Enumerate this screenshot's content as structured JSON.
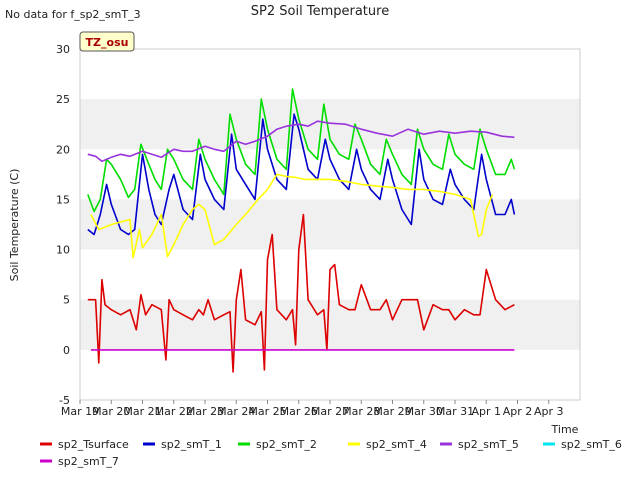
{
  "page": {
    "title": "SP2 Soil Temperature",
    "nodata_note": "No data for f_sp2_smT_3",
    "site_badge": "TZ_osu"
  },
  "chart_data": {
    "type": "line",
    "title": "SP2 Soil Temperature",
    "xlabel": "Time",
    "ylabel": "Soil Temperature (C)",
    "xlim": [
      0,
      16
    ],
    "ylim": [
      -5,
      30
    ],
    "x_ticks": [
      "Mar 19",
      "Mar 20",
      "Mar 21",
      "Mar 22",
      "Mar 23",
      "Mar 24",
      "Mar 25",
      "Mar 26",
      "Mar 27",
      "Mar 28",
      "Mar 29",
      "Mar 30",
      "Mar 31",
      "Apr 1",
      "Apr 2",
      "Apr 3"
    ],
    "y_ticks": [
      -5,
      0,
      5,
      10,
      15,
      20,
      25,
      30
    ],
    "grid": "horizontal bands",
    "legend_position": "bottom",
    "series": [
      {
        "name": "sp2_Tsurface",
        "color": "#dd0000",
        "x": [
          0.25,
          0.5,
          0.6,
          0.7,
          0.8,
          1.0,
          1.3,
          1.6,
          1.8,
          1.95,
          2.1,
          2.3,
          2.6,
          2.75,
          2.85,
          3.0,
          3.3,
          3.6,
          3.8,
          3.95,
          4.1,
          4.3,
          4.6,
          4.8,
          4.9,
          5.0,
          5.15,
          5.3,
          5.6,
          5.8,
          5.9,
          6.0,
          6.15,
          6.3,
          6.6,
          6.8,
          6.9,
          7.0,
          7.15,
          7.3,
          7.6,
          7.8,
          7.9,
          8.0,
          8.15,
          8.3,
          8.6,
          8.8,
          9.0,
          9.3,
          9.6,
          9.8,
          10.0,
          10.3,
          10.6,
          10.8,
          11.0,
          11.3,
          11.6,
          11.8,
          12.0,
          12.3,
          12.6,
          12.8,
          13.0,
          13.3,
          13.6,
          13.9
        ],
        "y": [
          5,
          5,
          -1.3,
          7,
          4.5,
          4,
          3.5,
          4,
          2,
          5.5,
          3.5,
          4.5,
          4,
          -1,
          5,
          4,
          3.5,
          3,
          4,
          3.5,
          5,
          3,
          3.5,
          3.8,
          -2.2,
          5,
          8,
          3,
          2.5,
          3.8,
          -2,
          9,
          11.5,
          4,
          3,
          4,
          0.5,
          10,
          13.5,
          5,
          3.5,
          4,
          0,
          8,
          8.5,
          4.5,
          4,
          4,
          6.5,
          4,
          4,
          5,
          3,
          5,
          5,
          5,
          2,
          4.5,
          4,
          4,
          3,
          4,
          3.5,
          3.5,
          8,
          5,
          4,
          4.5
        ]
      },
      {
        "name": "sp2_smT_1",
        "color": "#0000cc",
        "x": [
          0.25,
          0.45,
          0.65,
          0.85,
          1.0,
          1.3,
          1.55,
          1.75,
          2.0,
          2.2,
          2.4,
          2.6,
          2.85,
          3.0,
          3.3,
          3.6,
          3.85,
          4.0,
          4.3,
          4.6,
          4.85,
          5.0,
          5.3,
          5.6,
          5.85,
          6.0,
          6.3,
          6.6,
          6.85,
          7.0,
          7.3,
          7.6,
          7.85,
          8.0,
          8.3,
          8.6,
          8.85,
          9.0,
          9.3,
          9.6,
          9.85,
          10.0,
          10.3,
          10.6,
          10.85,
          11.0,
          11.3,
          11.6,
          11.85,
          12.0,
          12.3,
          12.6,
          12.85,
          13.0,
          13.3,
          13.6,
          13.8,
          13.9
        ],
        "y": [
          12,
          11.5,
          13.5,
          16.5,
          14.5,
          12,
          11.5,
          12,
          19.5,
          16,
          13.5,
          12.5,
          16,
          17.5,
          14,
          13,
          19.5,
          17,
          15,
          14,
          21.5,
          18,
          16.5,
          15,
          23,
          20,
          17,
          16,
          23.5,
          22,
          18,
          17,
          21,
          19,
          17,
          16,
          20,
          18,
          16,
          15,
          19,
          17,
          14,
          12.5,
          20,
          17,
          15,
          14.5,
          18,
          16.5,
          15,
          14,
          19.5,
          17,
          13.5,
          13.5,
          15,
          13.5
        ]
      },
      {
        "name": "sp2_smT_2",
        "color": "#00dd00",
        "x": [
          0.25,
          0.45,
          0.65,
          0.85,
          1.0,
          1.3,
          1.55,
          1.75,
          1.95,
          2.2,
          2.4,
          2.6,
          2.8,
          3.0,
          3.3,
          3.6,
          3.8,
          4.0,
          4.3,
          4.6,
          4.8,
          5.0,
          5.3,
          5.6,
          5.8,
          6.0,
          6.3,
          6.6,
          6.8,
          7.0,
          7.3,
          7.6,
          7.8,
          8.0,
          8.3,
          8.6,
          8.8,
          9.0,
          9.3,
          9.6,
          9.8,
          10.0,
          10.3,
          10.6,
          10.8,
          11.0,
          11.3,
          11.6,
          11.8,
          12.0,
          12.3,
          12.6,
          12.8,
          13.0,
          13.3,
          13.6,
          13.8,
          13.9
        ],
        "y": [
          15.5,
          13.8,
          15,
          19,
          18.5,
          17,
          15.2,
          16,
          20.5,
          18.5,
          17,
          16,
          20,
          19,
          17,
          16,
          21,
          19,
          17,
          15.5,
          23.5,
          21,
          18.5,
          17.5,
          25,
          22,
          19,
          18,
          26,
          23,
          20,
          19,
          24.5,
          21,
          19.5,
          19,
          22.5,
          21,
          18.5,
          17.5,
          21,
          19.5,
          17.5,
          16.5,
          22,
          20,
          18.5,
          18,
          21.5,
          19.5,
          18.5,
          18,
          22,
          20,
          17.5,
          17.5,
          19,
          18
        ]
      },
      {
        "name": "sp2_smT_4",
        "color": "#ffff00",
        "x": [
          0.35,
          0.6,
          1.0,
          1.6,
          1.7,
          1.9,
          2.0,
          2.3,
          2.6,
          2.8,
          3.0,
          3.3,
          3.6,
          3.8,
          4.0,
          4.3,
          4.6,
          5.0,
          5.3,
          5.7,
          6.0,
          6.3,
          6.6,
          6.9,
          7.2,
          7.6,
          8.0,
          8.5,
          9.0,
          9.6,
          10.0,
          10.5,
          11.0,
          11.5,
          12.0,
          12.5,
          12.75,
          12.85,
          13.0,
          13.2
        ],
        "y": [
          13.5,
          12,
          12.5,
          13,
          9.2,
          12,
          10.2,
          11.5,
          13.5,
          9.3,
          10.5,
          12.5,
          14,
          14.5,
          14,
          10.5,
          11,
          12.5,
          13.5,
          15,
          16,
          17.5,
          17.3,
          17.2,
          17,
          17,
          17,
          16.8,
          16.5,
          16.3,
          16.2,
          16,
          16,
          15.8,
          15.5,
          15,
          11.3,
          11.5,
          14,
          15.5
        ]
      },
      {
        "name": "sp2_smT_5",
        "color": "#9933dd",
        "x": [
          0.25,
          0.5,
          0.7,
          1.0,
          1.3,
          1.6,
          2.0,
          2.3,
          2.6,
          3.0,
          3.3,
          3.6,
          4.0,
          4.3,
          4.6,
          5.0,
          5.3,
          5.6,
          6.0,
          6.3,
          6.6,
          7.0,
          7.3,
          7.6,
          8.0,
          8.5,
          9.0,
          9.5,
          10.0,
          10.5,
          11.0,
          11.5,
          12.0,
          12.5,
          13.0,
          13.5,
          13.9
        ],
        "y": [
          19.5,
          19.3,
          18.8,
          19.2,
          19.5,
          19.3,
          19.8,
          19.5,
          19.2,
          20,
          19.8,
          19.8,
          20.3,
          20,
          19.8,
          20.8,
          20.5,
          20.8,
          21.3,
          22,
          22.3,
          22.5,
          22.3,
          22.8,
          22.6,
          22.5,
          22,
          21.6,
          21.3,
          22,
          21.5,
          21.8,
          21.6,
          21.8,
          21.7,
          21.3,
          21.2
        ]
      },
      {
        "name": "sp2_smT_6",
        "color": "#00e5ee",
        "x": [],
        "y": []
      },
      {
        "name": "sp2_smT_7",
        "color": "#cc00cc",
        "x": [
          0.35,
          13.9
        ],
        "y": [
          0,
          0
        ]
      }
    ]
  }
}
